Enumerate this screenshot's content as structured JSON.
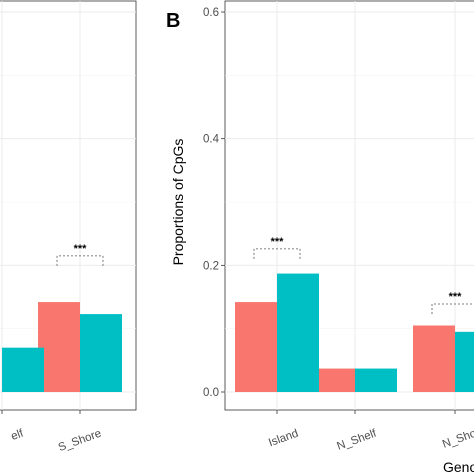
{
  "colors": {
    "series_a": "#F8766D",
    "series_b": "#00BFC4"
  },
  "chart_data": [
    {
      "panel_label": "",
      "type": "bar",
      "title": "",
      "xlabel": "",
      "ylabel": "",
      "ylim": [
        0,
        0.6
      ],
      "y_ticks": [],
      "categories": [
        "elf",
        "S_Shore"
      ],
      "category_labels": [
        "elf",
        "S_Shore"
      ],
      "series": [
        {
          "values": [
            null,
            0.142
          ]
        },
        {
          "values": [
            0.07,
            0.123
          ]
        }
      ],
      "significance": [
        {
          "category": "S_Shore",
          "label": "***",
          "y": 0.215
        }
      ],
      "grid": true,
      "legend": "none"
    },
    {
      "panel_label": "B",
      "type": "bar",
      "title": "",
      "xlabel": "Geno",
      "ylabel": "Proportions of CpGs",
      "ylim": [
        0,
        0.6
      ],
      "y_ticks": [
        "0.0",
        "0.2",
        "0.4",
        "0.6"
      ],
      "categories": [
        "Island",
        "N_Shelf",
        "N_Shore"
      ],
      "category_labels": [
        "Island",
        "N_Shelf",
        "N_Sho"
      ],
      "series": [
        {
          "values": [
            0.142,
            0.037,
            0.105
          ]
        },
        {
          "values": [
            0.187,
            0.037,
            0.095
          ]
        }
      ],
      "significance": [
        {
          "category": "Island",
          "label": "***",
          "y": 0.226
        },
        {
          "category": "N_Shore",
          "label": "***",
          "y": 0.139
        }
      ],
      "grid": true,
      "legend": "none"
    }
  ]
}
